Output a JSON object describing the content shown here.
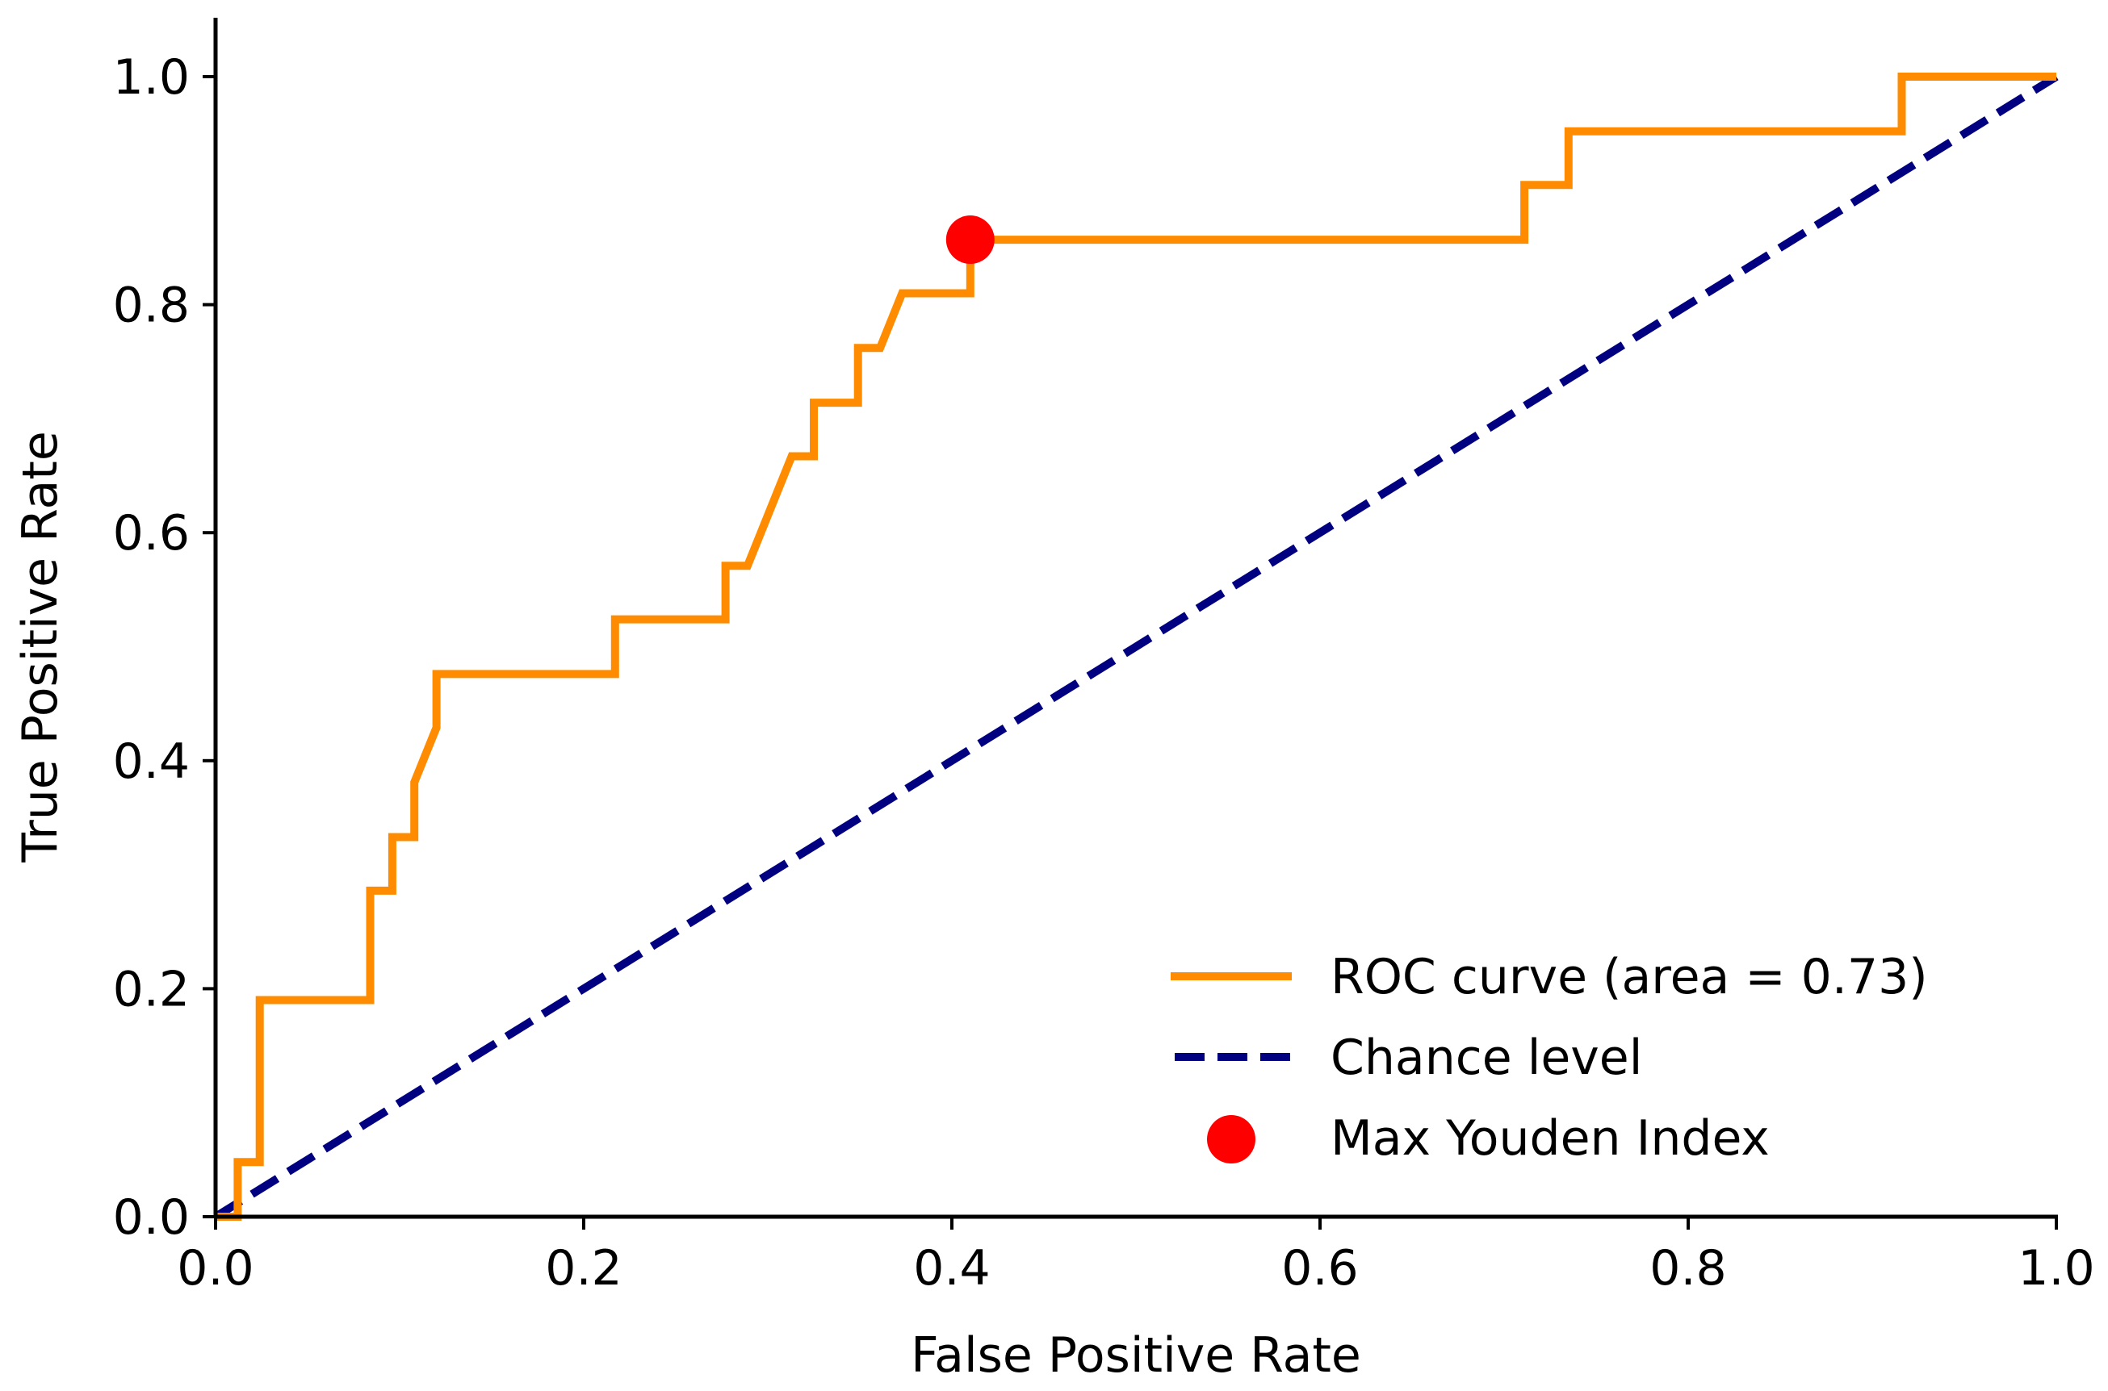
{
  "chart_data": {
    "type": "line",
    "title": "",
    "xlabel": "False Positive Rate",
    "ylabel": "True Positive Rate",
    "xlim": [
      0.0,
      1.0
    ],
    "ylim": [
      0.0,
      1.0
    ],
    "grid": false,
    "legend_position": "lower-right",
    "xticks": [
      "0.0",
      "0.2",
      "0.4",
      "0.6",
      "0.8",
      "1.0"
    ],
    "yticks": [
      "0.0",
      "0.2",
      "0.4",
      "0.6",
      "0.8",
      "1.0"
    ],
    "series": [
      {
        "name": "ROC curve (area = 0.73)",
        "style": "solid",
        "color": "#ff8c00",
        "points": [
          [
            0.0,
            0.0
          ],
          [
            0.012,
            0.0
          ],
          [
            0.012,
            0.048
          ],
          [
            0.024,
            0.048
          ],
          [
            0.024,
            0.19
          ],
          [
            0.084,
            0.19
          ],
          [
            0.084,
            0.286
          ],
          [
            0.096,
            0.286
          ],
          [
            0.096,
            0.333
          ],
          [
            0.108,
            0.333
          ],
          [
            0.108,
            0.381
          ],
          [
            0.12,
            0.429
          ],
          [
            0.12,
            0.476
          ],
          [
            0.217,
            0.476
          ],
          [
            0.217,
            0.524
          ],
          [
            0.277,
            0.524
          ],
          [
            0.277,
            0.571
          ],
          [
            0.289,
            0.571
          ],
          [
            0.313,
            0.667
          ],
          [
            0.325,
            0.667
          ],
          [
            0.325,
            0.714
          ],
          [
            0.349,
            0.714
          ],
          [
            0.349,
            0.762
          ],
          [
            0.361,
            0.762
          ],
          [
            0.373,
            0.81
          ],
          [
            0.41,
            0.81
          ],
          [
            0.41,
            0.857
          ],
          [
            0.711,
            0.857
          ],
          [
            0.711,
            0.905
          ],
          [
            0.735,
            0.905
          ],
          [
            0.735,
            0.952
          ],
          [
            0.916,
            0.952
          ],
          [
            0.916,
            1.0
          ],
          [
            1.0,
            1.0
          ]
        ]
      },
      {
        "name": "Chance level",
        "style": "dashed",
        "color": "#000080",
        "points": [
          [
            0.0,
            0.0
          ],
          [
            1.0,
            1.0
          ]
        ]
      }
    ],
    "markers": [
      {
        "name": "Max Youden Index",
        "color": "#ff0000",
        "x": 0.41,
        "y": 0.857
      }
    ]
  }
}
